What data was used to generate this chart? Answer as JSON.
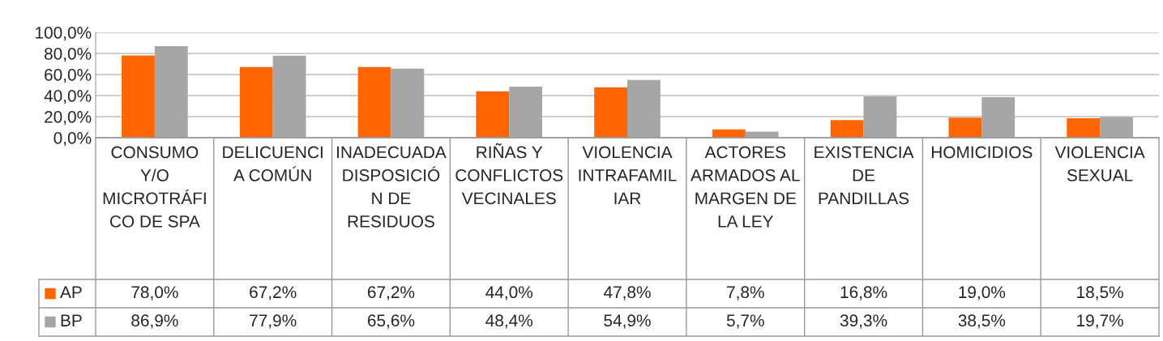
{
  "chart_data": {
    "type": "bar",
    "categories": [
      "CONSUMO Y/O MICROTRÁFICO DE SPA",
      "DELICUENCIA COMÚN",
      "INADECUADA DISPOSICIÓN DE RESIDUOS",
      "RIÑAS Y CONFLICTOS VECINALES",
      "VIOLENCIA INTRAFAMILIAR",
      "ACTORES ARMADOS AL MARGEN DE LA LEY",
      "EXISTENCIA DE PANDILLAS",
      "HOMICIDIOS",
      "VIOLENCIA SEXUAL"
    ],
    "series": [
      {
        "name": "AP",
        "color": "#ff6600",
        "values": [
          78.0,
          67.2,
          67.2,
          44.0,
          47.8,
          7.8,
          16.8,
          19.0,
          18.5
        ],
        "value_labels": [
          "78,0%",
          "67,2%",
          "67,2%",
          "44,0%",
          "47,8%",
          "7,8%",
          "16,8%",
          "19,0%",
          "18,5%"
        ]
      },
      {
        "name": "BP",
        "color": "#a6a6a6",
        "values": [
          86.9,
          77.9,
          65.6,
          48.4,
          54.9,
          5.7,
          39.3,
          38.5,
          19.7
        ],
        "value_labels": [
          "86,9%",
          "77,9%",
          "65,6%",
          "48,4%",
          "54,9%",
          "5,7%",
          "39,3%",
          "38,5%",
          "19,7%"
        ]
      }
    ],
    "ylim": [
      0,
      100
    ],
    "yticks": [
      {
        "value": 0,
        "label": "0,0%"
      },
      {
        "value": 20,
        "label": "20,0%"
      },
      {
        "value": 40,
        "label": "40,0%"
      },
      {
        "value": 60,
        "label": "60,0%"
      },
      {
        "value": 80,
        "label": "80,0%"
      },
      {
        "value": 100,
        "label": "100,0%"
      }
    ],
    "grid": "y",
    "legend": "bottom"
  }
}
